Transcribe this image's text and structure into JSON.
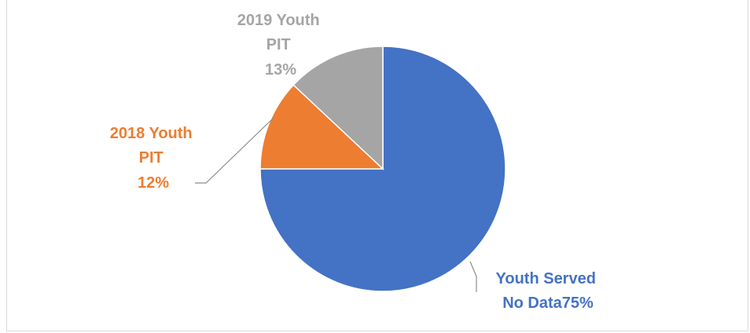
{
  "chart_data": {
    "type": "pie",
    "title": "",
    "slices": [
      {
        "name": "Youth Served No Data",
        "value": 75,
        "label": "75%",
        "color": "#4472c4",
        "label_lines": [
          "Youth Served",
          "No Data75%"
        ]
      },
      {
        "name": "2018 Youth PIT",
        "value": 12,
        "label": "12%",
        "color": "#ed7d31",
        "label_lines": [
          "2018 Youth",
          "PIT",
          "12%"
        ]
      },
      {
        "name": "2019 Youth PIT",
        "value": 13,
        "label": "13%",
        "color": "#a5a5a5",
        "label_lines": [
          "2019 Youth",
          "PIT",
          "13%"
        ]
      }
    ],
    "start_angle_deg": 0,
    "direction": "clockwise",
    "legend": "none"
  }
}
